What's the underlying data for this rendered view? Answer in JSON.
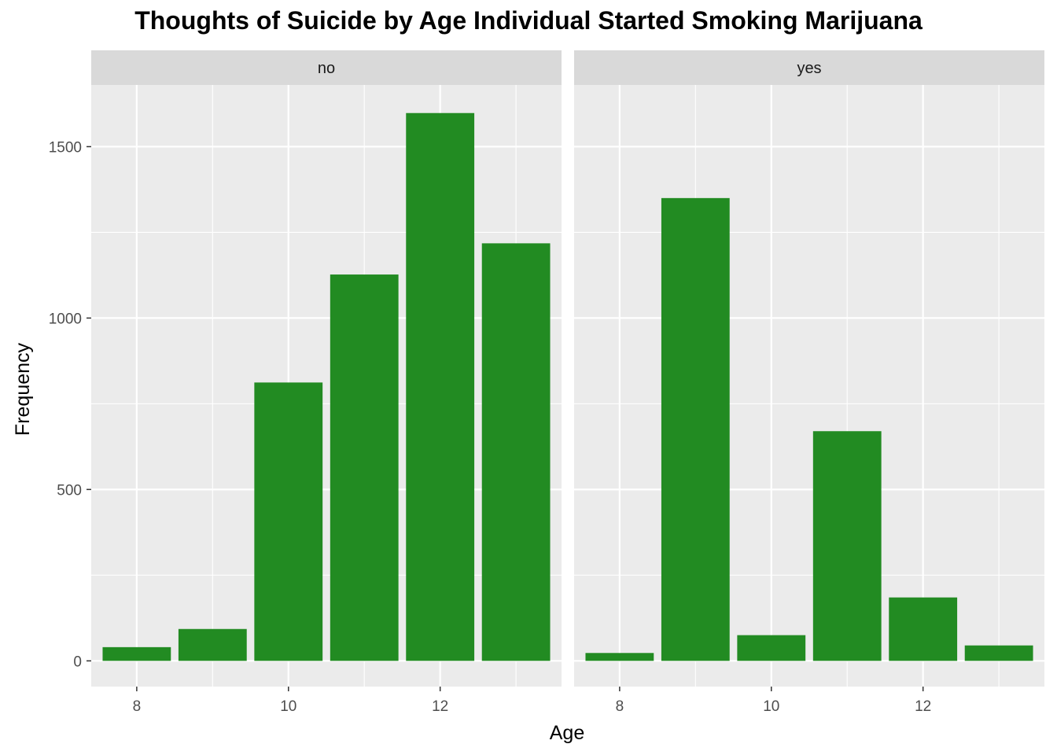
{
  "chart_data": {
    "type": "bar",
    "title": "Thoughts of Suicide by Age Individual Started Smoking Marijuana",
    "xlabel": "Age",
    "ylabel": "Frequency",
    "x": [
      8,
      9,
      10,
      11,
      12,
      13
    ],
    "x_ticks": [
      8,
      10,
      12
    ],
    "y_ticks": [
      0,
      500,
      1000,
      1500
    ],
    "ylim": [
      -75,
      1680
    ],
    "xlim": [
      7.4,
      13.6
    ],
    "grid": true,
    "bar_color": "#228B22",
    "panel_background": "#EBEBEB",
    "strip_background": "#D9D9D9",
    "facets": [
      {
        "label": "no",
        "values": [
          40,
          93,
          812,
          1127,
          1598,
          1218
        ]
      },
      {
        "label": "yes",
        "values": [
          23,
          1350,
          75,
          670,
          185,
          45
        ]
      }
    ]
  }
}
